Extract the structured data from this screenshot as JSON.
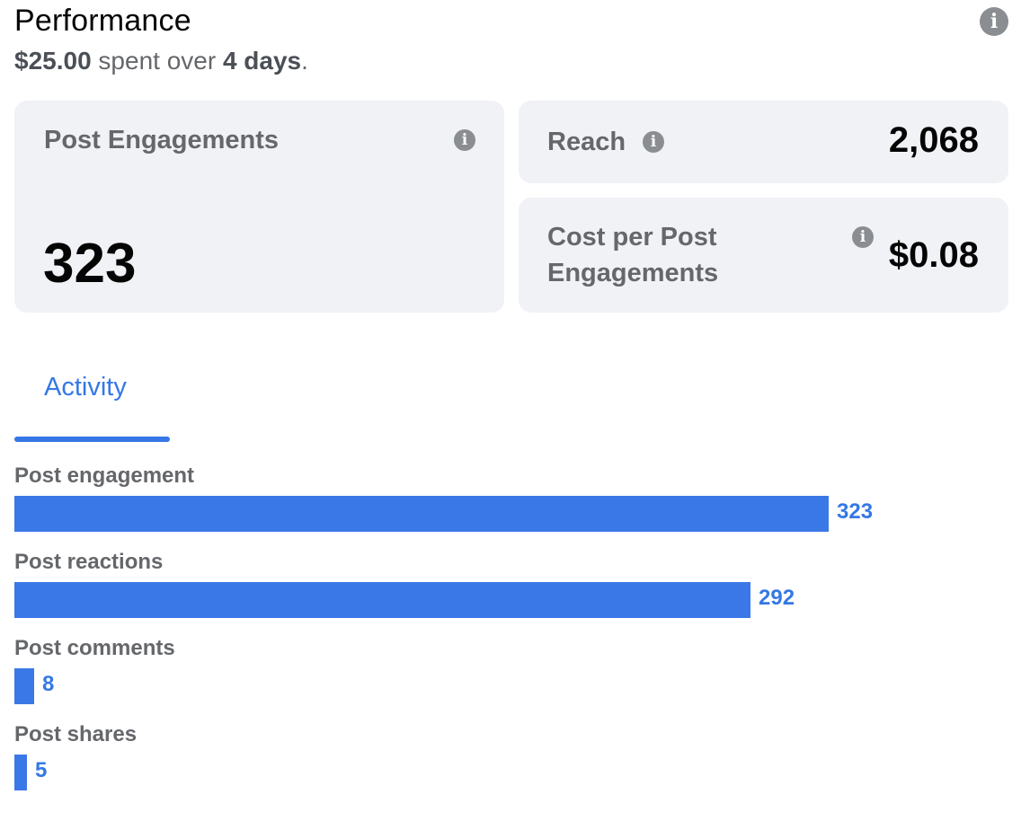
{
  "header": {
    "title": "Performance",
    "spent_amount": "$25.00",
    "spent_text": " spent over ",
    "duration": "4 days",
    "period_suffix": "."
  },
  "cards": {
    "post_engagements": {
      "label": "Post Engagements",
      "value": "323"
    },
    "reach": {
      "label": "Reach",
      "value": "2,068"
    },
    "cost_per": {
      "label_line1": "Cost per Post",
      "label_line2": "Engagements",
      "value": "$0.08"
    }
  },
  "tabs": [
    {
      "label": "Activity",
      "active": true
    }
  ],
  "activity": {
    "max": 323,
    "items": [
      {
        "label": "Post engagement",
        "value": 323,
        "value_text": "323"
      },
      {
        "label": "Post reactions",
        "value": 292,
        "value_text": "292"
      },
      {
        "label": "Post comments",
        "value": 8,
        "value_text": "8"
      },
      {
        "label": "Post shares",
        "value": 5,
        "value_text": "5"
      }
    ]
  },
  "icons": {
    "info": "info-icon"
  },
  "colors": {
    "accent": "#3578e5",
    "bar": "#3b78e7",
    "card_bg": "#f0f2f5",
    "muted_text": "#65676b",
    "icon_gray": "#8a8d91"
  }
}
